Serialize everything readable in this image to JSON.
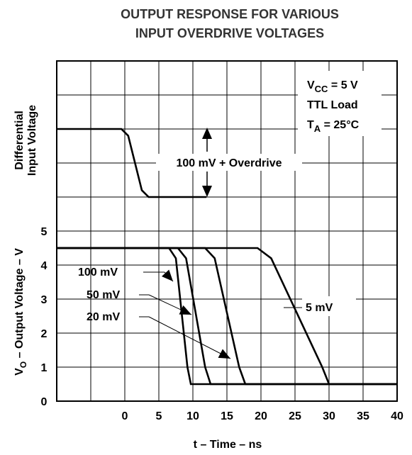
{
  "chart_data": {
    "type": "line",
    "title": [
      "OUTPUT RESPONSE FOR VARIOUS",
      "INPUT OVERDRIVE VOLTAGES"
    ],
    "x_label": "t – Time – ns",
    "y_label": {
      "main": "V",
      "sub": "O",
      "rest": " – Output Voltage – V"
    },
    "y_label_upper": [
      "Differential",
      "Input Voltage"
    ],
    "xlim": [
      -10,
      40
    ],
    "xticks": [
      0,
      5,
      10,
      15,
      20,
      25,
      30,
      35,
      40
    ],
    "ylim": [
      0,
      10
    ],
    "yticks": [
      0,
      1,
      2,
      3,
      4,
      5
    ],
    "grid": true,
    "conditions": [
      {
        "main": "V",
        "sub": "CC",
        "rest": " = 5 V"
      },
      {
        "main": "TTL Load",
        "sub": null,
        "rest": null
      },
      {
        "main": "T",
        "sub": "A",
        "rest": " = 25°C"
      }
    ],
    "input_label": "100 mV + Overdrive",
    "series": [
      {
        "name": "Input",
        "x": [
          -10,
          -0.5,
          0.5,
          1.5,
          2.5,
          3.5,
          12
        ],
        "values": [
          8,
          8,
          7.8,
          7,
          6.2,
          6,
          6
        ]
      },
      {
        "name": "100 mV",
        "x": [
          -10,
          6.5,
          7.5,
          9.2,
          9.7,
          40
        ],
        "values": [
          4.5,
          4.5,
          4.2,
          1.0,
          0.5,
          0.5
        ]
      },
      {
        "name": "50 mV",
        "x": [
          -10,
          7.8,
          9.0,
          11.8,
          12.6,
          40
        ],
        "values": [
          4.5,
          4.5,
          4.2,
          1.0,
          0.5,
          0.5
        ]
      },
      {
        "name": "20 mV",
        "x": [
          -10,
          11.8,
          13.2,
          16.8,
          17.7,
          40
        ],
        "values": [
          4.5,
          4.5,
          4.2,
          1.0,
          0.5,
          0.5
        ]
      },
      {
        "name": "5 mV",
        "x": [
          -10,
          19.5,
          21.5,
          29.0,
          30.0,
          40
        ],
        "values": [
          4.5,
          4.5,
          4.2,
          1.0,
          0.5,
          0.5
        ]
      }
    ]
  }
}
